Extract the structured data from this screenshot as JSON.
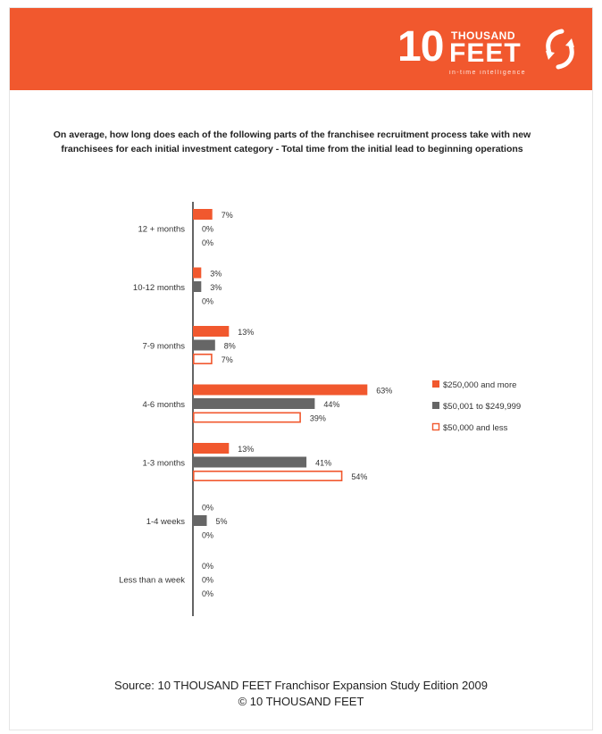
{
  "header": {
    "logo_number": "10",
    "logo_thousand": "THOUSAND",
    "logo_feet": "FEET",
    "logo_tagline": "in-time intelligence",
    "logo_icon": "swirl-arrows-icon",
    "color": "#f1582e"
  },
  "chart_data": {
    "type": "bar",
    "orientation": "horizontal",
    "title": "On average, how long does each of the following parts of the franchisee recruitment process take with new franchisees for each initial investment category - Total time from the initial lead to beginning operations",
    "categories": [
      "12 + months",
      "10-12 months",
      "7-9 months",
      "4-6 months",
      "1-3 months",
      "1-4 weeks",
      "Less than a week"
    ],
    "series": [
      {
        "name": "$250,000 and more",
        "values": [
          7,
          3,
          13,
          63,
          13,
          0,
          0
        ],
        "color": "#f1582e",
        "style": "filled"
      },
      {
        "name": "$50,001 to $249,999",
        "values": [
          0,
          3,
          8,
          44,
          41,
          5,
          0
        ],
        "color": "#666666",
        "style": "filled"
      },
      {
        "name": "$50,000 and less",
        "values": [
          0,
          0,
          7,
          39,
          54,
          0,
          0
        ],
        "color": "#f1582e",
        "style": "outline"
      }
    ],
    "value_suffix": "%",
    "xlim": [
      0,
      100
    ],
    "legend_position": "right",
    "grid": false
  },
  "footer": {
    "source": "Source: 10 THOUSAND FEET Franchisor Expansion Study Edition 2009",
    "copyright": "© 10 THOUSAND FEET"
  }
}
